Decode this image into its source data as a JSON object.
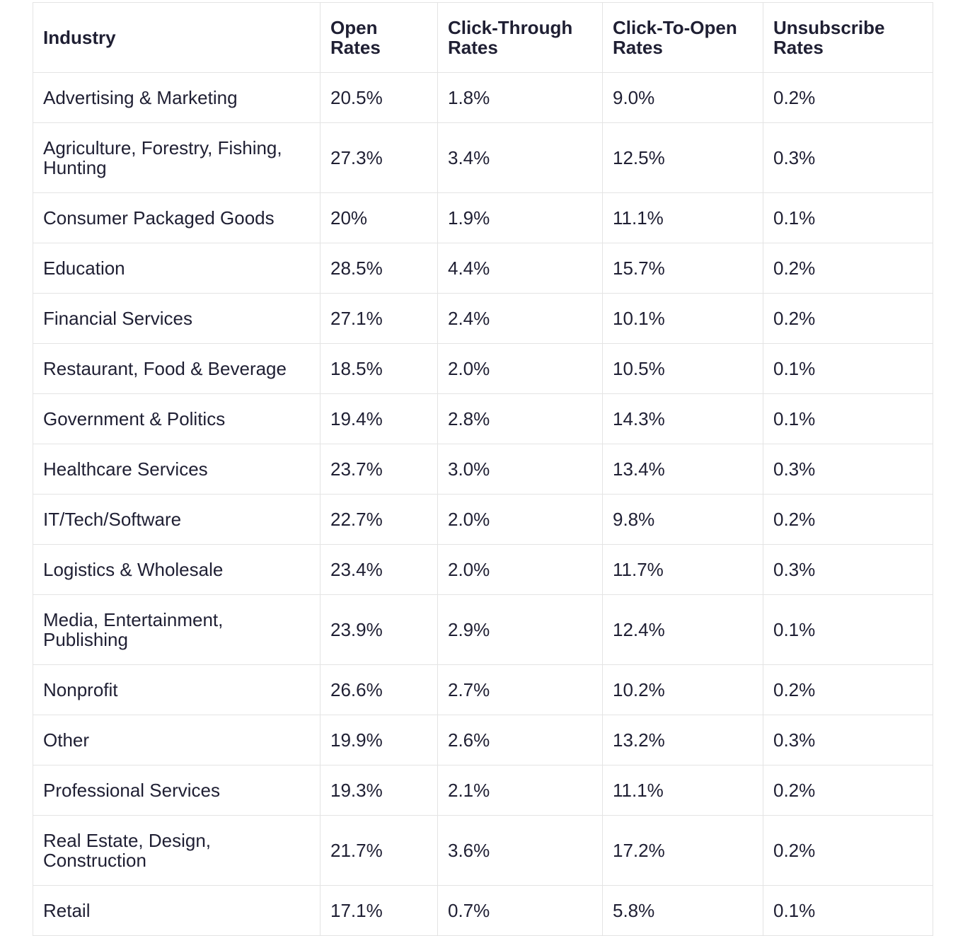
{
  "table": {
    "headers": [
      "Industry",
      "Open Rates",
      "Click-Through Rates",
      "Click-To-Open Rates",
      "Unsubscribe Rates"
    ],
    "rows": [
      [
        "Advertising & Marketing",
        "20.5%",
        "1.8%",
        "9.0%",
        "0.2%"
      ],
      [
        "Agriculture, Forestry, Fishing, Hunting",
        "27.3%",
        "3.4%",
        "12.5%",
        "0.3%"
      ],
      [
        "Consumer Packaged Goods",
        "20%",
        "1.9%",
        "11.1%",
        "0.1%"
      ],
      [
        "Education",
        "28.5%",
        "4.4%",
        "15.7%",
        "0.2%"
      ],
      [
        "Financial Services",
        "27.1%",
        "2.4%",
        "10.1%",
        "0.2%"
      ],
      [
        "Restaurant, Food & Beverage",
        "18.5%",
        "2.0%",
        "10.5%",
        "0.1%"
      ],
      [
        "Government & Politics",
        "19.4%",
        "2.8%",
        "14.3%",
        "0.1%"
      ],
      [
        "Healthcare Services",
        "23.7%",
        "3.0%",
        "13.4%",
        "0.3%"
      ],
      [
        "IT/Tech/Software",
        "22.7%",
        "2.0%",
        "9.8%",
        "0.2%"
      ],
      [
        "Logistics & Wholesale",
        "23.4%",
        "2.0%",
        "11.7%",
        "0.3%"
      ],
      [
        "Media, Entertainment, Publishing",
        "23.9%",
        "2.9%",
        "12.4%",
        "0.1%"
      ],
      [
        "Nonprofit",
        "26.6%",
        "2.7%",
        "10.2%",
        "0.2%"
      ],
      [
        "Other",
        "19.9%",
        "2.6%",
        "13.2%",
        "0.3%"
      ],
      [
        "Professional Services",
        "19.3%",
        "2.1%",
        "11.1%",
        "0.2%"
      ],
      [
        "Real Estate, Design, Construction",
        "21.7%",
        "3.6%",
        "17.2%",
        "0.2%"
      ],
      [
        "Retail",
        "17.1%",
        "0.7%",
        "5.8%",
        "0.1%"
      ]
    ]
  }
}
